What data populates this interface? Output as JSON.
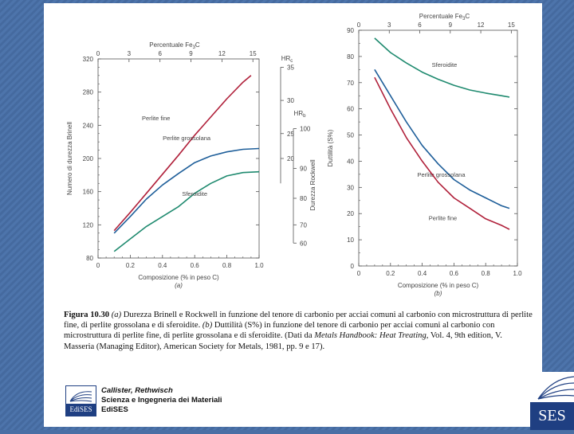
{
  "colors": {
    "red": "#b0203a",
    "blue": "#1f5f9a",
    "green": "#1f8a6f",
    "axis": "#555555",
    "text": "#444444"
  },
  "chart_data": [
    {
      "type": "line",
      "id": "a",
      "panel_label": "(a)",
      "xlabel": "Composizione (% in peso C)",
      "ylabel": "Numero di durezza Brinell",
      "xlim": [
        0,
        1.0
      ],
      "ylim": [
        80,
        320
      ],
      "x_ticks": [
        "0",
        "0.2",
        "0.4",
        "0.6",
        "0.8",
        "1.0"
      ],
      "y_ticks": [
        "80",
        "120",
        "160",
        "200",
        "240",
        "280",
        "320"
      ],
      "top_axis": {
        "label": "Percentuale Fe3C",
        "ticks": [
          "0",
          "3",
          "6",
          "9",
          "12",
          "15"
        ]
      },
      "right_axes": [
        {
          "label": "HRc",
          "ticks": [
            "35",
            "30",
            "25",
            "20"
          ]
        },
        {
          "label": "HRb",
          "ticks": [
            "100",
            "90",
            "80",
            "70",
            "60"
          ]
        }
      ],
      "rockwell_label": "Durezza Rockwell",
      "series": [
        {
          "name": "Perlite fine",
          "color": "red",
          "x": [
            0.1,
            0.2,
            0.3,
            0.4,
            0.5,
            0.6,
            0.7,
            0.8,
            0.9,
            0.95
          ],
          "y": [
            113,
            135,
            158,
            181,
            204,
            228,
            250,
            272,
            292,
            300
          ],
          "label_pos": [
            0.36,
            246
          ]
        },
        {
          "name": "Perlite grossolana",
          "color": "blue",
          "x": [
            0.1,
            0.2,
            0.3,
            0.4,
            0.5,
            0.6,
            0.7,
            0.8,
            0.9,
            1.0
          ],
          "y": [
            110,
            130,
            151,
            168,
            182,
            195,
            203,
            208,
            211,
            212
          ],
          "label_pos": [
            0.55,
            222
          ]
        },
        {
          "name": "Sferoidite",
          "color": "green",
          "x": [
            0.1,
            0.2,
            0.3,
            0.4,
            0.5,
            0.6,
            0.7,
            0.8,
            0.9,
            1.0
          ],
          "y": [
            88,
            103,
            118,
            130,
            142,
            158,
            170,
            179,
            183,
            184
          ],
          "label_pos": [
            0.6,
            155
          ]
        }
      ]
    },
    {
      "type": "line",
      "id": "b",
      "panel_label": "(b)",
      "xlabel": "Composizione (% in peso C)",
      "ylabel": "Duttilità (S%)",
      "xlim": [
        0,
        1.0
      ],
      "ylim": [
        0,
        90
      ],
      "x_ticks": [
        "0",
        "0.2",
        "0.4",
        "0.6",
        "0.8",
        "1.0"
      ],
      "y_ticks": [
        "0",
        "10",
        "20",
        "30",
        "40",
        "50",
        "60",
        "70",
        "80",
        "90"
      ],
      "top_axis": {
        "label": "Percentuale Fe3C",
        "ticks": [
          "0",
          "3",
          "6",
          "9",
          "12",
          "15"
        ]
      },
      "series": [
        {
          "name": "Sferoidite",
          "color": "green",
          "x": [
            0.1,
            0.2,
            0.3,
            0.4,
            0.5,
            0.6,
            0.7,
            0.8,
            0.9,
            0.95
          ],
          "y": [
            87,
            81.5,
            77.5,
            74,
            71.3,
            69,
            67.2,
            66,
            65,
            64.5
          ],
          "label_pos": [
            0.54,
            76
          ]
        },
        {
          "name": "Perlite grossolana",
          "color": "blue",
          "x": [
            0.1,
            0.2,
            0.3,
            0.4,
            0.5,
            0.6,
            0.7,
            0.8,
            0.9,
            0.95
          ],
          "y": [
            75,
            65,
            55,
            46,
            39,
            33,
            29,
            26,
            23,
            22
          ],
          "label_pos": [
            0.52,
            34
          ]
        },
        {
          "name": "Perlite fine",
          "color": "red",
          "x": [
            0.1,
            0.2,
            0.3,
            0.4,
            0.5,
            0.6,
            0.7,
            0.8,
            0.9,
            0.95
          ],
          "y": [
            72,
            60,
            49,
            40,
            32,
            26,
            22,
            18,
            15.5,
            14
          ],
          "label_pos": [
            0.53,
            17.5
          ]
        }
      ]
    }
  ],
  "caption": {
    "figure_label": "Figura 10.30",
    "part_a_marker": "(a)",
    "text_a": " Durezza Brinell e Rockwell in funzione del tenore di carbonio per acciai comuni al carbonio con microstruttura di perlite fine, di perlite grossolana e di sferoidite. ",
    "part_b_marker": "(b)",
    "text_b": " Duttilità (S%) in funzione del tenore di carbonio per acciai comuni al carbonio con microstruttura di perlite fine, di perlite grossolana e di sferoidite. (Dati da ",
    "source_title": "Metals Handbook: Heat Treating",
    "source_rest": ", Vol. 4, 9th edition, V. Masseria (Managing Editor), American Society for Metals, 1981, pp. 9 e 17)."
  },
  "footer": {
    "authors": "Callister, Rethwisch",
    "book": "Scienza e Ingegneria dei Materiali",
    "publisher": "EdiSES",
    "logo_text": "EdiSES",
    "corner_logo": "SES"
  }
}
